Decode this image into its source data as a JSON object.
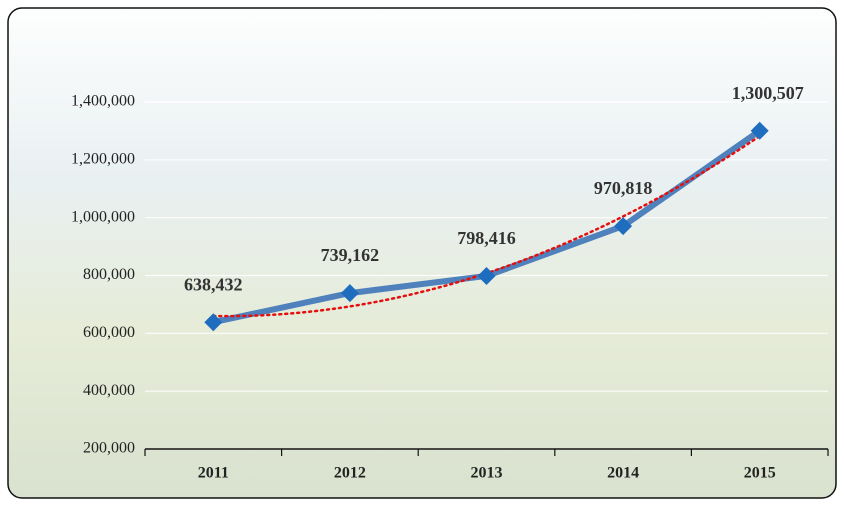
{
  "chart_data": {
    "type": "line",
    "categories": [
      "2011",
      "2012",
      "2013",
      "2014",
      "2015"
    ],
    "values": [
      638432,
      739162,
      798416,
      970818,
      1300507
    ],
    "value_labels": [
      "638,432",
      "739,162",
      "798,416",
      "970,818",
      "1,300,507"
    ],
    "color": "#4f81bd",
    "marker_color": "#1f6dbf",
    "ylim": [
      200000,
      1400000
    ],
    "yticks": [
      {
        "value": 200000,
        "label": "200,000"
      },
      {
        "value": 400000,
        "label": "400,000"
      },
      {
        "value": 600000,
        "label": "600,000"
      },
      {
        "value": 800000,
        "label": "800,000"
      },
      {
        "value": 1000000,
        "label": "1,000,000"
      },
      {
        "value": 1200000,
        "label": "1,200,000"
      },
      {
        "value": 1400000,
        "label": "1,400,000"
      }
    ],
    "grid": true,
    "trendline": {
      "kind": "polynomial",
      "order": 2,
      "color": "#e41010"
    }
  }
}
